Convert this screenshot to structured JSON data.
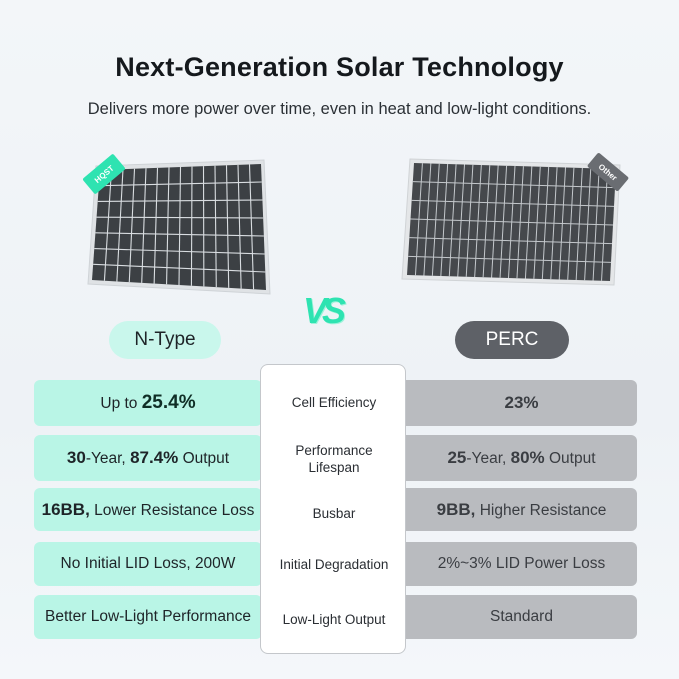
{
  "header": {
    "title": "Next-Generation Solar Technology",
    "subtitle": "Delivers more power over time, even in heat and low-light conditions."
  },
  "products": {
    "left": {
      "name": "N-Type",
      "badge": "HQST"
    },
    "right": {
      "name": "PERC",
      "badge": "Other"
    },
    "vs_label": "VS"
  },
  "comparison": [
    {
      "feature": "Cell Efficiency",
      "left": {
        "prefix": "Up to ",
        "highlight": "25.4%",
        "suffix": ""
      },
      "right": {
        "prefix": "",
        "highlight": "23%",
        "suffix": ""
      }
    },
    {
      "feature_line1": "Performance",
      "feature_line2": "Lifespan",
      "left": {
        "num1": "30",
        "text1": "-Year, ",
        "num2": "87.4%",
        "text2": " Output"
      },
      "right": {
        "num1": "25",
        "text1": "-Year, ",
        "num2": "80%",
        "text2": " Output"
      }
    },
    {
      "feature": "Busbar",
      "left": {
        "bold": "16BB,",
        "text": " Lower Resistance Loss"
      },
      "right": {
        "bold": "9BB,",
        "text": " Higher Resistance"
      }
    },
    {
      "feature": "Initial Degradation",
      "left": {
        "text": "No Initial LID Loss, 200W"
      },
      "right": {
        "text": "2%~3% LID Power Loss"
      }
    },
    {
      "feature": "Low-Light Output",
      "left": {
        "text": "Better Low-Light Performance"
      },
      "right": {
        "text": "Standard"
      }
    }
  ],
  "colors": {
    "accent_teal": "#2ee3b1",
    "left_row_bg": "#b9f5e6",
    "right_row_bg": "#b9bbbf",
    "right_pill_bg": "#5e6167"
  }
}
